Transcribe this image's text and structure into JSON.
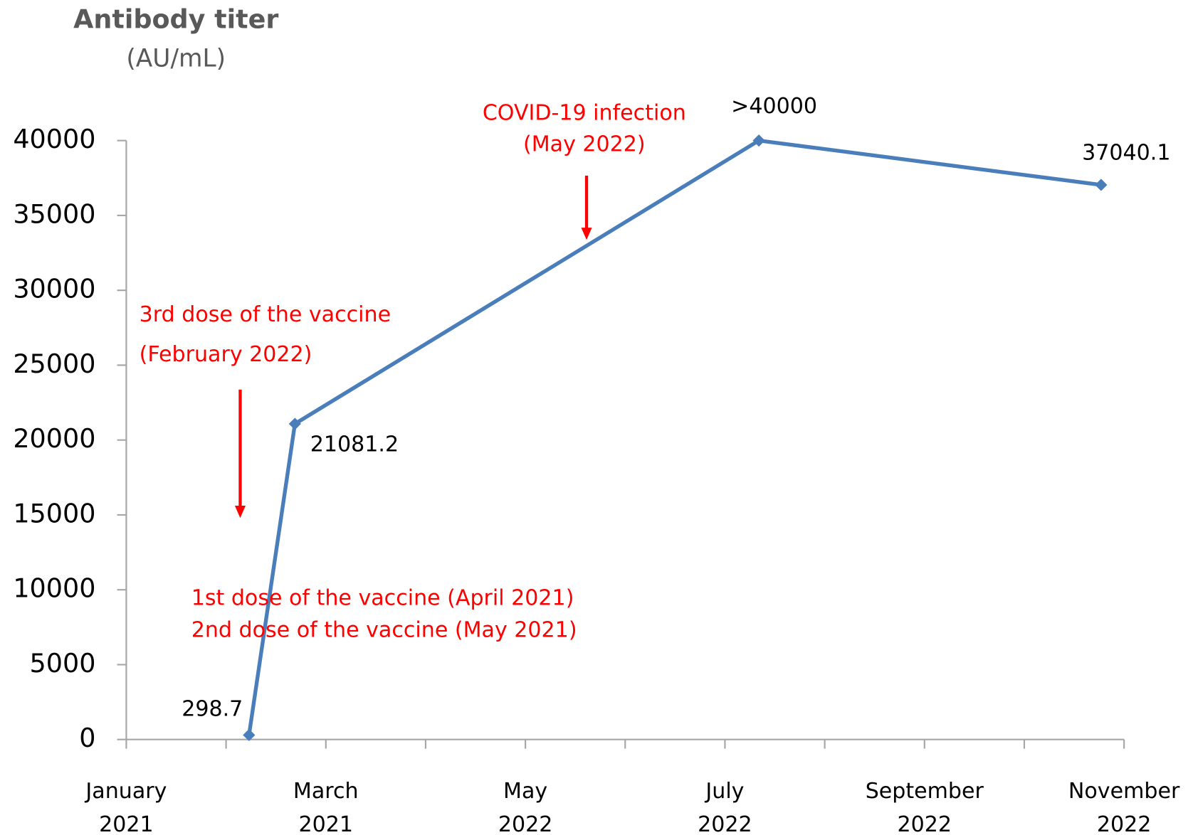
{
  "chart_data": {
    "type": "line",
    "title": "Antibody titer",
    "ylabel": "(AU/mL)",
    "x": [
      1.23,
      1.69,
      6.34,
      9.77
    ],
    "series": [
      {
        "name": "Antibody titer",
        "color": "#4a7ebb",
        "values": [
          298.7,
          21081.2,
          40000,
          37040.1
        ],
        "value_labels": [
          "298.7",
          "21081.2",
          ">40000",
          "37040.1"
        ]
      }
    ],
    "xlim": [
      0,
      10
    ],
    "xticks": [
      {
        "value": 0,
        "label": "January 2021"
      },
      {
        "value": 2,
        "label": "March 2021"
      },
      {
        "value": 4,
        "label": "May 2022"
      },
      {
        "value": 6,
        "label": "July 2022"
      },
      {
        "value": 8,
        "label": "September 2022"
      },
      {
        "value": 10,
        "label": "November 2022"
      }
    ],
    "xminorticks": [
      1,
      3,
      5,
      7,
      9
    ],
    "ylim": [
      0,
      40000
    ],
    "yticks": [
      0,
      5000,
      10000,
      15000,
      20000,
      25000,
      30000,
      35000,
      40000
    ],
    "annotation_color": "#ff0000",
    "annotations": [
      "COVID-19 infection",
      "(May 2022)",
      "3rd dose of the vaccine",
      "(February 2022)",
      "1st dose of the vaccine (April 2021)",
      "2nd dose of the vaccine (May 2021)"
    ]
  }
}
